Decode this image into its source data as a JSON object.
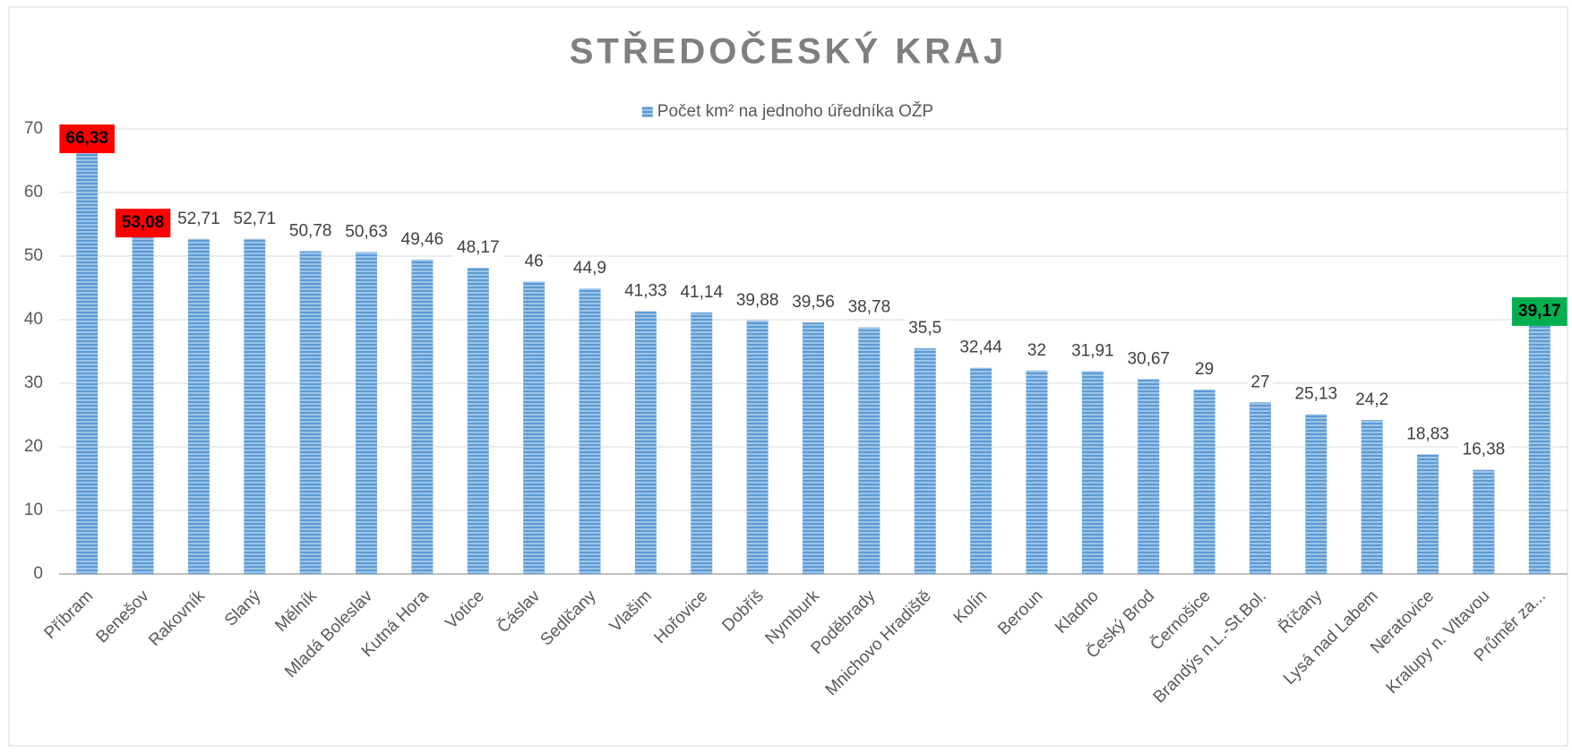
{
  "chart_data": {
    "type": "bar",
    "title": "STŘEDOČESKÝ KRAJ",
    "categories": [
      "Příbram",
      "Benešov",
      "Rakovník",
      "Slaný",
      "Mělník",
      "Mladá Boleslav",
      "Kutná Hora",
      "Votice",
      "Čáslav",
      "Sedlčany",
      "Vlašim",
      "Hořovice",
      "Dobříš",
      "Nymburk",
      "Poděbrady",
      "Mnichovo Hradiště",
      "Kolín",
      "Beroun",
      "Kladno",
      "Český Brod",
      "Černošice",
      "Brandýs n.L.-St.Bol.",
      "Říčany",
      "Lysá nad Labem",
      "Neratovice",
      "Kralupy n. Vltavou",
      "Průměr za..."
    ],
    "series": [
      {
        "name": "Počet km² na jednoho úředníka OŽP",
        "color": "#5b9bd5",
        "values": [
          66.33,
          53.08,
          52.71,
          52.71,
          50.78,
          50.63,
          49.46,
          48.17,
          46,
          44.9,
          41.33,
          41.14,
          39.88,
          39.56,
          38.78,
          35.5,
          32.44,
          32,
          31.91,
          30.67,
          29,
          27,
          25.13,
          24.2,
          18.83,
          16.38,
          39.17
        ],
        "value_labels": [
          "66,33",
          "53,08",
          "52,71",
          "52,71",
          "50,78",
          "50,63",
          "49,46",
          "48,17",
          "46",
          "44,9",
          "41,33",
          "41,14",
          "39,88",
          "39,56",
          "38,78",
          "35,5",
          "32,44",
          "32",
          "31,91",
          "30,67",
          "29",
          "27",
          "25,13",
          "24,2",
          "18,83",
          "16,38",
          "39,17"
        ],
        "label_highlights": [
          "#ff0000",
          "#ff0000",
          null,
          null,
          null,
          null,
          null,
          null,
          null,
          null,
          null,
          null,
          null,
          null,
          null,
          null,
          null,
          null,
          null,
          null,
          null,
          null,
          null,
          null,
          null,
          null,
          "#00b050"
        ]
      }
    ],
    "ylim": [
      0,
      70
    ],
    "yticks": [
      0,
      10,
      20,
      30,
      40,
      50,
      60,
      70
    ],
    "grid": true,
    "legend": "top"
  }
}
